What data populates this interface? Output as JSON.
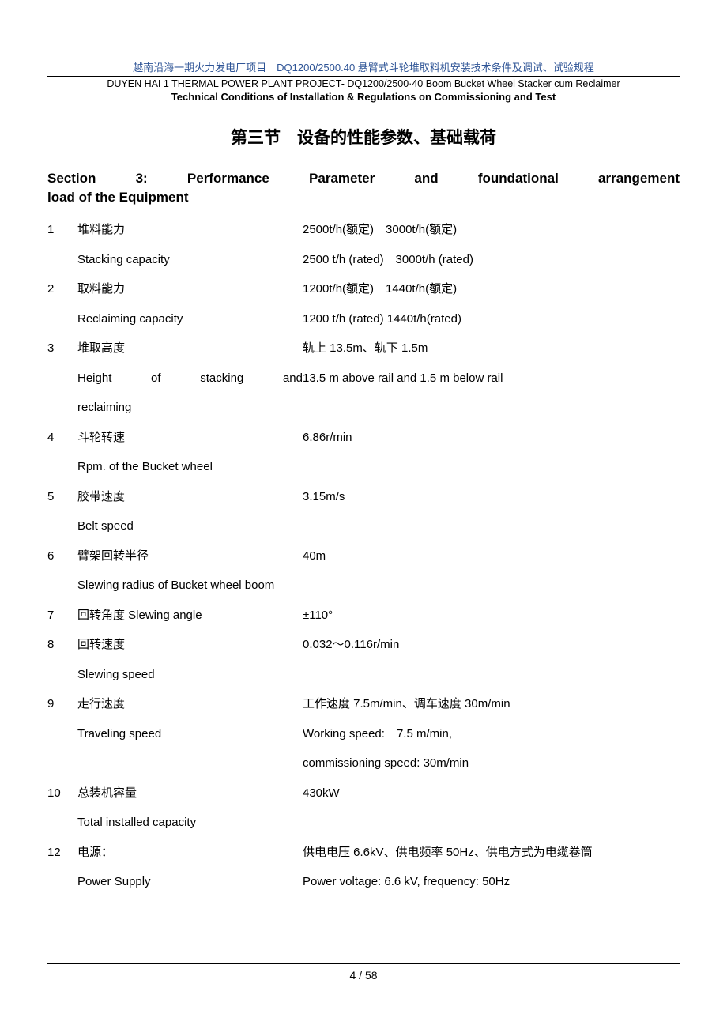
{
  "header": {
    "zh": "越南沿海一期火力发电厂项目　DQ1200/2500.40 悬臂式斗轮堆取料机安装技术条件及调试、试验规程",
    "en1": "DUYEN HAI 1 THERMAL POWER PLANT PROJECT- DQ1200/2500·40 Boom Bucket Wheel Stacker cum Reclaimer",
    "en2": "Technical Conditions of Installation & Regulations on Commissioning and Test"
  },
  "section": {
    "title_zh": "第三节　设备的性能参数、基础载荷",
    "title_en_line1": "Section 3:  Performance Parameter and foundational arrangement",
    "title_en_line2": "load of the Equipment"
  },
  "params": [
    {
      "num": "1",
      "label_zh": "堆料能力",
      "value_zh": "2500t/h(额定)　3000t/h(额定)",
      "label_en": "Stacking capacity",
      "value_en": "2500 t/h (rated)　3000t/h (rated)"
    },
    {
      "num": "2",
      "label_zh": "取料能力",
      "value_zh": "1200t/h(额定)　1440t/h(额定)",
      "label_en": "Reclaiming capacity",
      "value_en": "1200 t/h (rated) 1440t/h(rated)"
    },
    {
      "num": "3",
      "label_zh": "堆取高度",
      "value_zh": "轨上 13.5m、轨下 1.5m",
      "label_en": "Height of stacking and reclaiming",
      "value_en": "13.5 m above rail and 1.5 m below rail",
      "justify_en": true
    },
    {
      "num": "4",
      "label_zh": "斗轮转速",
      "value_zh": "6.86r/min",
      "label_en": "Rpm. of the Bucket wheel",
      "value_en": ""
    },
    {
      "num": "5",
      "label_zh": "胶带速度",
      "value_zh": "3.15m/s",
      "label_en": "Belt speed",
      "value_en": ""
    },
    {
      "num": "6",
      "label_zh": "臂架回转半径",
      "value_zh": "40m",
      "label_en": "Slewing radius of Bucket wheel boom",
      "value_en": ""
    },
    {
      "num": "7",
      "label_zh": "回转角度 Slewing angle",
      "value_zh": "±110°",
      "label_en": "",
      "value_en": ""
    },
    {
      "num": "8",
      "label_zh": "回转速度",
      "value_zh": "0.032～0.116r/min",
      "label_en": "Slewing speed",
      "value_en": ""
    },
    {
      "num": "9",
      "label_zh": "走行速度",
      "value_zh": "工作速度 7.5m/min、调车速度 30m/min",
      "label_en": "Traveling speed",
      "value_en": "Working speed:　7.5 m/min,",
      "value_en2": "commissioning speed: 30m/min"
    },
    {
      "num": "10",
      "label_zh": "总装机容量",
      "value_zh": "430kW",
      "label_en": "Total installed capacity",
      "value_en": ""
    },
    {
      "num": "12",
      "label_zh": "电源：",
      "value_zh": "供电电压 6.6kV、供电频率 50Hz、供电方式为电缆卷筒",
      "label_en": "Power Supply",
      "value_en": "Power voltage: 6.6 kV, frequency: 50Hz"
    }
  ],
  "footer": {
    "page": "4 / 58"
  }
}
